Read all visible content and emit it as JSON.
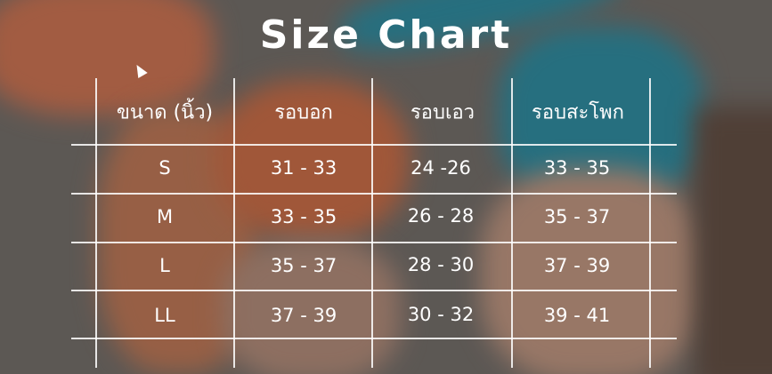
{
  "title": "Size Chart",
  "headers": [
    "ขนาด (นิ้ว)",
    "รอบอก",
    "รอบเอว",
    "รอบสะโพก"
  ],
  "rows": [
    [
      "S",
      "31 - 33",
      "24 -26",
      "33 - 35"
    ],
    [
      "M",
      "33 - 35",
      "26 - 28",
      "35 - 37"
    ],
    [
      "L",
      "35 - 37",
      "28 - 30",
      "37 - 39"
    ],
    [
      "LL",
      "37 - 39",
      "30 - 32",
      "39 - 41"
    ]
  ],
  "colors": {
    "text": "#ffffff",
    "swimsuit_teal": "#1e9ab0",
    "swimsuit_orange": "#e06a3a"
  }
}
